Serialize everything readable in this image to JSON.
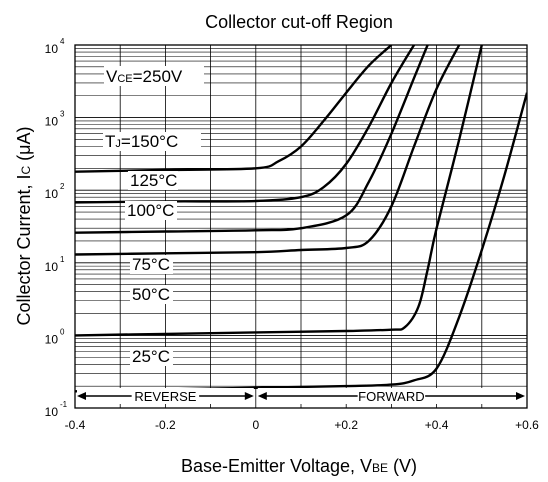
{
  "chart_data": {
    "type": "line",
    "title": "Collector cut-off Region",
    "xlabel": {
      "main": "Base-Emitter Voltage, V",
      "sub": "BE",
      "unit": " (V)"
    },
    "ylabel": {
      "main": "Collector Current, I",
      "sub": "C",
      "unit": " (μA)"
    },
    "xlim": [
      -0.4,
      0.6
    ],
    "ylim": [
      0.1,
      10000
    ],
    "yscale": "log",
    "grid": true,
    "x_ticks": [
      "-0.4",
      "-0.2",
      "0",
      "+0.2",
      "+0.4",
      "+0.6"
    ],
    "x_tick_values": [
      -0.4,
      -0.2,
      0,
      0.2,
      0.4,
      0.6
    ],
    "y_ticks": [
      {
        "base": "10",
        "exp": "-1",
        "value": 0.1
      },
      {
        "base": "10",
        "exp": "0",
        "value": 1
      },
      {
        "base": "10",
        "exp": "1",
        "value": 10
      },
      {
        "base": "10",
        "exp": "2",
        "value": 100
      },
      {
        "base": "10",
        "exp": "3",
        "value": 1000
      },
      {
        "base": "10",
        "exp": "4",
        "value": 10000
      }
    ],
    "vce_label": {
      "pre": "V",
      "sub": "CE",
      "post": "=250V"
    },
    "regions": {
      "reverse": "REVERSE",
      "forward": "FORWARD"
    },
    "series": [
      {
        "name": "T_J=150°C",
        "label_pre": "T",
        "label_sub": "J",
        "label_post": "=150°C",
        "x": [
          -0.4,
          -0.2,
          0,
          0.05,
          0.1,
          0.15,
          0.2,
          0.25,
          0.3
        ],
        "y": [
          180,
          190,
          200,
          250,
          400,
          900,
          2200,
          5200,
          10000
        ]
      },
      {
        "name": "125°C",
        "label_pre": "125°C",
        "label_sub": "",
        "label_post": "",
        "x": [
          -0.4,
          -0.2,
          0,
          0.1,
          0.15,
          0.2,
          0.25,
          0.3,
          0.35
        ],
        "y": [
          68,
          70,
          71,
          80,
          110,
          230,
          750,
          3000,
          10000
        ]
      },
      {
        "name": "100°C",
        "label_pre": "100°C",
        "label_sub": "",
        "label_post": "",
        "x": [
          -0.4,
          -0.2,
          0,
          0.1,
          0.2,
          0.25,
          0.3,
          0.35,
          0.38
        ],
        "y": [
          26,
          27,
          28,
          30,
          45,
          130,
          600,
          3500,
          10000
        ]
      },
      {
        "name": "75°C",
        "label_pre": "75°C",
        "label_sub": "",
        "label_post": "",
        "x": [
          -0.4,
          -0.2,
          0,
          0.1,
          0.2,
          0.25,
          0.3,
          0.35,
          0.4,
          0.45
        ],
        "y": [
          13,
          13.5,
          14,
          15,
          16,
          20,
          60,
          400,
          2500,
          10000
        ]
      },
      {
        "name": "50°C",
        "label_pre": "50°C",
        "label_sub": "",
        "label_post": "",
        "x": [
          -0.4,
          -0.2,
          0,
          0.2,
          0.3,
          0.33,
          0.36,
          0.38,
          0.4,
          0.45,
          0.5
        ],
        "y": [
          1.0,
          1.05,
          1.1,
          1.15,
          1.2,
          1.3,
          2.5,
          8,
          30,
          500,
          10000
        ]
      },
      {
        "name": "25°C",
        "label_pre": "25°C",
        "label_sub": "",
        "label_post": "",
        "x": [
          -0.4,
          -0.2,
          0,
          0.2,
          0.3,
          0.35,
          0.4,
          0.45,
          0.5,
          0.55,
          0.6
        ],
        "y": [
          0.17,
          0.18,
          0.19,
          0.2,
          0.21,
          0.24,
          0.35,
          1.8,
          15,
          160,
          2200
        ]
      }
    ]
  }
}
